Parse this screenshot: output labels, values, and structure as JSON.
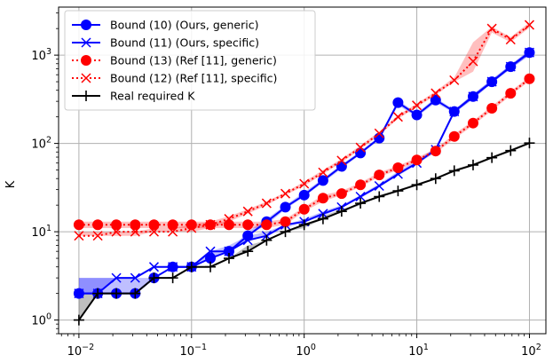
{
  "chart_data": {
    "type": "line",
    "title": "",
    "xlabel": "",
    "ylabel": "K",
    "xscale": "log",
    "yscale": "log",
    "xlim": [
      0.0066,
      140
    ],
    "ylim": [
      0.7,
      3500
    ],
    "grid": true,
    "legend_position": "top-left",
    "x_ticks": [
      {
        "value": 0.01,
        "base": "10",
        "exp": "−2"
      },
      {
        "value": 0.1,
        "base": "10",
        "exp": "−1"
      },
      {
        "value": 1,
        "base": "10",
        "exp": "0"
      },
      {
        "value": 10,
        "base": "10",
        "exp": "1"
      },
      {
        "value": 100,
        "base": "10",
        "exp": "2"
      }
    ],
    "y_ticks": [
      {
        "value": 1,
        "base": "10",
        "exp": "0"
      },
      {
        "value": 10,
        "base": "10",
        "exp": "1"
      },
      {
        "value": 100,
        "base": "10",
        "exp": "2"
      },
      {
        "value": 1000,
        "base": "10",
        "exp": "3"
      }
    ],
    "x": [
      0.01,
      0.0147,
      0.0215,
      0.0316,
      0.0464,
      0.0681,
      0.1,
      0.147,
      0.215,
      0.316,
      0.464,
      0.681,
      1.0,
      1.47,
      2.15,
      3.16,
      4.64,
      6.81,
      10.0,
      14.7,
      21.5,
      31.6,
      46.4,
      68.1,
      100.0
    ],
    "series": [
      {
        "name": "Bound (10) (Ours, generic)",
        "color": "#0000ff",
        "marker": "circle",
        "linestyle": "solid",
        "values": [
          2,
          2,
          2,
          2,
          3,
          4,
          4,
          5,
          6,
          9,
          13,
          19,
          26,
          38,
          55,
          78,
          115,
          290,
          210,
          310,
          230,
          340,
          500,
          740,
          1070
        ],
        "band_low": [
          2,
          2,
          2,
          2,
          3,
          4,
          4,
          5,
          6,
          9,
          12,
          18,
          25,
          36,
          52,
          75,
          110,
          270,
          200,
          290,
          220,
          320,
          480,
          700,
          1000
        ],
        "band_high": [
          3,
          3,
          3,
          3,
          3,
          4,
          4,
          5,
          6,
          10,
          14,
          20,
          28,
          40,
          58,
          82,
          120,
          310,
          220,
          330,
          240,
          360,
          530,
          780,
          1130
        ]
      },
      {
        "name": "Bound (11) (Ours, specific)",
        "color": "#0000ff",
        "marker": "x",
        "linestyle": "solid",
        "values": [
          2,
          2,
          3,
          3,
          4,
          4,
          4,
          6,
          6,
          8,
          9,
          12,
          13,
          16,
          19,
          25,
          33,
          45,
          60,
          85,
          230,
          340,
          500,
          740,
          1070
        ],
        "band_low": [
          2,
          2,
          3,
          3,
          4,
          4,
          4,
          5,
          6,
          8,
          9,
          11,
          13,
          15,
          19,
          24,
          32,
          43,
          58,
          80,
          220,
          320,
          480,
          700,
          1000
        ],
        "band_high": [
          3,
          3,
          3,
          3,
          4,
          4,
          4,
          6,
          7,
          9,
          10,
          12,
          14,
          17,
          20,
          26,
          35,
          48,
          64,
          90,
          240,
          360,
          530,
          780,
          1130
        ]
      },
      {
        "name": "Bound (13) (Ref [11], generic)",
        "color": "#ff0000",
        "marker": "circle",
        "linestyle": "dotted",
        "values": [
          12,
          12,
          12,
          12,
          12,
          12,
          12,
          12,
          12,
          12,
          12,
          13,
          18,
          24,
          27,
          34,
          44,
          53,
          65,
          82,
          120,
          170,
          250,
          370,
          540
        ],
        "band_low": [
          11,
          11,
          11,
          11,
          11,
          11,
          11,
          11,
          11,
          11,
          11,
          12,
          17,
          22,
          26,
          32,
          42,
          50,
          62,
          78,
          112,
          160,
          235,
          350,
          510
        ],
        "band_high": [
          13,
          13,
          13,
          13,
          13,
          13,
          13,
          13,
          13,
          13,
          13,
          14,
          19,
          26,
          29,
          36,
          47,
          56,
          69,
          87,
          128,
          180,
          265,
          390,
          570
        ]
      },
      {
        "name": "Bound (12) (Ref [11], specific)",
        "color": "#ff0000",
        "marker": "x",
        "linestyle": "dotted",
        "values": [
          9,
          9,
          10,
          10,
          10,
          10,
          11,
          12,
          14,
          17,
          21,
          27,
          35,
          47,
          64,
          90,
          130,
          200,
          270,
          370,
          520,
          850,
          2000,
          1500,
          2200
        ],
        "band_low": [
          9,
          9,
          9,
          9,
          10,
          10,
          10,
          11,
          13,
          16,
          20,
          26,
          33,
          45,
          61,
          86,
          124,
          190,
          258,
          352,
          500,
          650,
          1800,
          1400,
          2050
        ],
        "band_high": [
          10,
          10,
          10,
          10,
          11,
          11,
          12,
          13,
          15,
          18,
          22,
          28,
          37,
          50,
          67,
          95,
          136,
          210,
          282,
          390,
          560,
          1400,
          2100,
          1600,
          2350
        ]
      },
      {
        "name": "Real required K",
        "color": "#000000",
        "marker": "plus",
        "linestyle": "solid",
        "values": [
          1,
          2,
          2,
          2,
          3,
          3,
          4,
          4,
          5,
          6,
          8,
          10,
          12,
          14,
          17,
          21,
          25,
          29,
          34,
          40,
          49,
          57,
          69,
          83,
          101
        ],
        "band_low": [
          1,
          2,
          2,
          2,
          3,
          3,
          4,
          4,
          5,
          6,
          8,
          10,
          11,
          14,
          17,
          20,
          25,
          29,
          33,
          39,
          48,
          56,
          68,
          82,
          99
        ],
        "band_high": [
          2,
          2,
          2,
          2,
          3,
          3,
          4,
          4,
          5,
          7,
          8,
          10,
          12,
          15,
          18,
          21,
          26,
          30,
          35,
          41,
          51,
          59,
          71,
          86,
          104
        ]
      }
    ]
  }
}
